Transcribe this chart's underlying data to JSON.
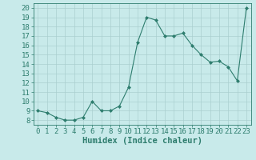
{
  "x": [
    0,
    1,
    2,
    3,
    4,
    5,
    6,
    7,
    8,
    9,
    10,
    11,
    12,
    13,
    14,
    15,
    16,
    17,
    18,
    19,
    20,
    21,
    22,
    23
  ],
  "y": [
    9,
    8.8,
    8.3,
    8,
    8,
    8.3,
    10,
    9,
    9,
    9.5,
    11.5,
    16.3,
    19,
    18.7,
    17,
    17,
    17.3,
    16,
    15,
    14.2,
    14.3,
    13.7,
    12.2,
    20
  ],
  "line_color": "#2e7d6e",
  "marker": "D",
  "marker_size": 2.0,
  "bg_color": "#c8eaea",
  "grid_color": "#aacfcf",
  "xlabel": "Humidex (Indice chaleur)",
  "xlim": [
    -0.5,
    23.5
  ],
  "ylim": [
    7.5,
    20.5
  ],
  "xticks": [
    0,
    1,
    2,
    3,
    4,
    5,
    6,
    7,
    8,
    9,
    10,
    11,
    12,
    13,
    14,
    15,
    16,
    17,
    18,
    19,
    20,
    21,
    22,
    23
  ],
  "yticks": [
    8,
    9,
    10,
    11,
    12,
    13,
    14,
    15,
    16,
    17,
    18,
    19,
    20
  ],
  "tick_fontsize": 6.5,
  "xlabel_fontsize": 7.5
}
